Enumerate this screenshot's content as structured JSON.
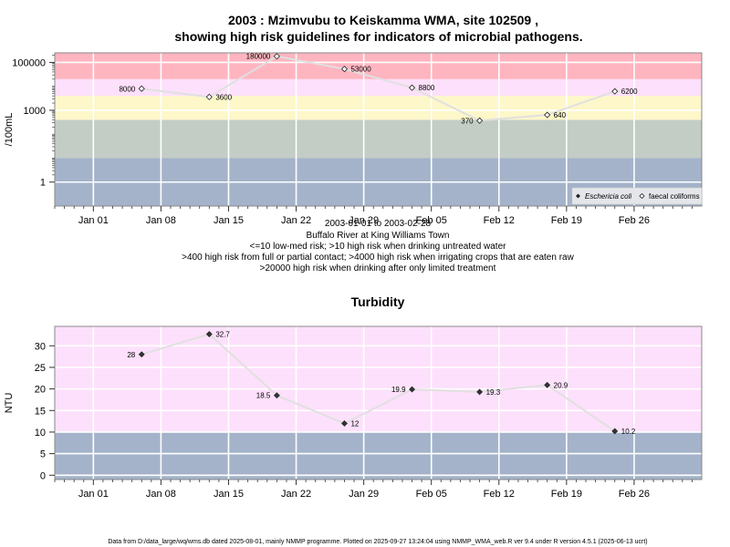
{
  "top": {
    "title_line1": "2003 : Mzimvubu to Keiskamma WMA, site 102509 ,",
    "title_line2": "showing high risk guidelines for indicators of microbial pathogens.",
    "ylabel": "/100mL",
    "yticks": [
      "1",
      "1000",
      "100000"
    ],
    "caption": [
      "2003-01-01 to 2003-02-28",
      "Buffalo River at King Williams Town",
      "<=10 low-med risk; >10 high risk when drinking untreated water",
      ">400 high risk from full or partial contact; >4000 high risk when irrigating crops that are eaten raw",
      ">20000 high risk when drinking after only limited treatment"
    ],
    "legend": [
      "Eschericia coli",
      "faecal coliforms"
    ]
  },
  "bottom": {
    "title": "Turbidity",
    "ylabel": "NTU",
    "yticks": [
      "0",
      "5",
      "10",
      "15",
      "20",
      "25",
      "30"
    ]
  },
  "xticks": [
    "Jan 01",
    "Jan 08",
    "Jan 15",
    "Jan 22",
    "Jan 29",
    "Feb 05",
    "Feb 12",
    "Feb 19",
    "Feb 26"
  ],
  "footer": "Data from D:/data_large/wq/wms.db dated 2025-08-01, mainly NMMP programme. Plotted on 2025-09-27 13:24:04 using NMMP_WMA_web.R ver 9.4 under R version 4.5.1 (2025-06-13 ucrt)",
  "colors": {
    "red": "#ffb5c0",
    "pink": "#fde0fb",
    "yellow": "#fdf7c9",
    "green": "#c3cdc6",
    "blue": "#a4b3ca",
    "line": "#e0e0e0"
  },
  "chart_data": [
    {
      "type": "line",
      "title": "2003 : Mzimvubu to Keiskamma WMA, site 102509 , showing high risk guidelines for indicators of microbial pathogens.",
      "ylabel": "/100mL",
      "yscale": "log",
      "ylim": [
        0.1,
        250000
      ],
      "xlim": [
        "2002-12-28",
        "2003-03-05"
      ],
      "bands": [
        {
          "from": 0.1,
          "to": 10,
          "color": "#a4b3ca"
        },
        {
          "from": 10,
          "to": 400,
          "color": "#c3cdc6"
        },
        {
          "from": 400,
          "to": 4000,
          "color": "#fdf7c9"
        },
        {
          "from": 4000,
          "to": 20000,
          "color": "#fde0fb"
        },
        {
          "from": 20000,
          "to": 250000,
          "color": "#ffb5c0"
        }
      ],
      "series": [
        {
          "name": "faecal coliforms",
          "x": [
            "2003-01-06",
            "2003-01-13",
            "2003-01-20",
            "2003-01-27",
            "2003-02-03",
            "2003-02-10",
            "2003-02-17",
            "2003-02-24"
          ],
          "y": [
            8000,
            3600,
            180000,
            53000,
            8800,
            370,
            640,
            6200
          ],
          "labels": [
            "8000",
            "3600",
            "180000",
            "53000",
            "8800",
            "370",
            "640",
            "6200"
          ]
        }
      ]
    },
    {
      "type": "line",
      "title": "Turbidity",
      "ylabel": "NTU",
      "ylim": [
        -1,
        34.5
      ],
      "xlim": [
        "2002-12-28",
        "2003-03-05"
      ],
      "bands": [
        {
          "from": -1,
          "to": 10,
          "color": "#a4b3ca"
        },
        {
          "from": 10,
          "to": 34.5,
          "color": "#fde0fb"
        }
      ],
      "series": [
        {
          "x": [
            "2003-01-06",
            "2003-01-13",
            "2003-01-20",
            "2003-01-27",
            "2003-02-03",
            "2003-02-10",
            "2003-02-17",
            "2003-02-24"
          ],
          "y": [
            28,
            32.7,
            18.5,
            12,
            19.9,
            19.3,
            20.9,
            10.2
          ],
          "labels": [
            "28",
            "32.7",
            "18.5",
            "12",
            "19.9",
            "19.3",
            "20.9",
            "10.2"
          ]
        }
      ]
    }
  ]
}
